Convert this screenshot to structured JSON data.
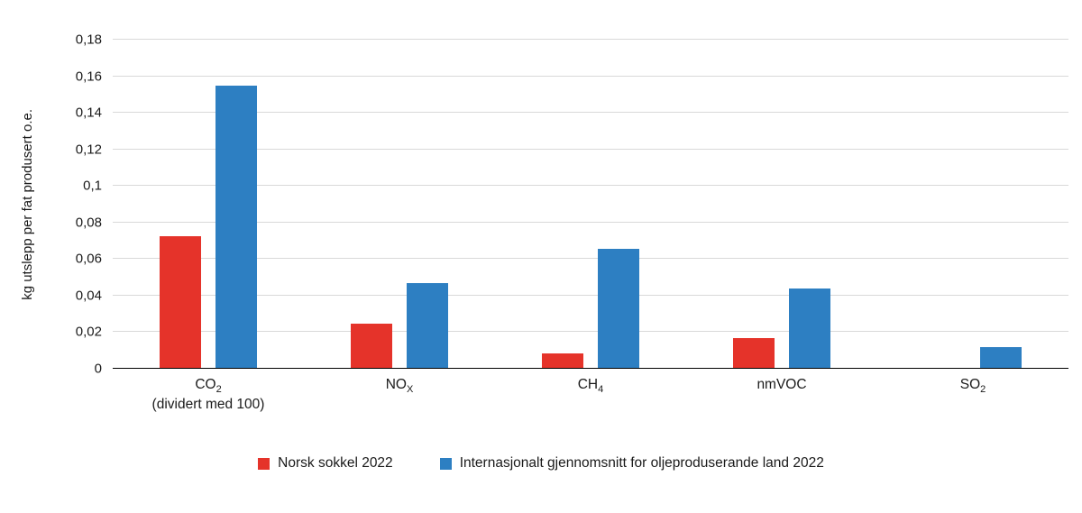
{
  "chart_data": {
    "type": "bar",
    "title": "",
    "ylabel": "kg utslepp per fat produsert o.e.",
    "xlabel": "",
    "ylim": [
      0,
      0.18
    ],
    "ytick_step": 0.02,
    "ytick_labels": [
      "0",
      "0,02",
      "0,04",
      "0,06",
      "0,08",
      "0,1",
      "0,12",
      "0,14",
      "0,16",
      "0,18"
    ],
    "grid": true,
    "legend_position": "bottom",
    "categories": [
      {
        "main": "CO",
        "sub": "2",
        "note": "(dividert med 100)"
      },
      {
        "main": "NO",
        "sub": "X",
        "note": ""
      },
      {
        "main": "CH",
        "sub": "4",
        "note": ""
      },
      {
        "main": "nmVOC",
        "sub": "",
        "note": ""
      },
      {
        "main": "SO",
        "sub": "2",
        "note": ""
      }
    ],
    "series": [
      {
        "name": "Norsk sokkel 2022",
        "color": "#e5332a",
        "values": [
          0.0725,
          0.0245,
          0.0085,
          0.017,
          0.0005
        ]
      },
      {
        "name": "Internasjonalt gjennomsnitt for oljeproduserande land 2022",
        "color": "#2d7fc2",
        "values": [
          0.155,
          0.047,
          0.0655,
          0.044,
          0.012
        ]
      }
    ]
  }
}
